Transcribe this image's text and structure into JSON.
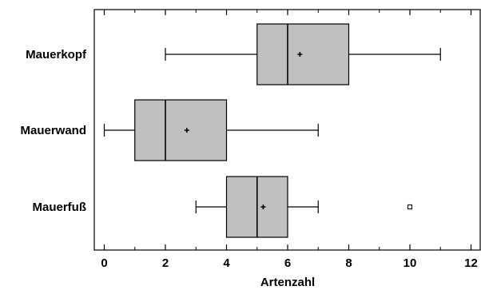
{
  "chart_data": {
    "type": "box",
    "xlabel": "Artenzahl",
    "xlim": [
      -0.3,
      12.3
    ],
    "x_ticks": [
      0,
      2,
      4,
      6,
      8,
      10,
      12
    ],
    "x_tick_labels": [
      "0",
      "2",
      "4",
      "6",
      "8",
      "10",
      "12"
    ],
    "categories": [
      "Mauerkopf",
      "Mauerwand",
      "Mauerfuß"
    ],
    "boxes": [
      {
        "category": "Mauerkopf",
        "whisker_low": 2,
        "q1": 5,
        "median": 6,
        "mean": 6.4,
        "q3": 8,
        "whisker_high": 11,
        "outliers": []
      },
      {
        "category": "Mauerwand",
        "whisker_low": 0,
        "q1": 1,
        "median": 2,
        "mean": 2.7,
        "q3": 4,
        "whisker_high": 7,
        "outliers": []
      },
      {
        "category": "Mauerfuß",
        "whisker_low": 3,
        "q1": 4,
        "median": 5,
        "mean": 5.2,
        "q3": 6,
        "whisker_high": 7,
        "outliers": [
          10
        ]
      }
    ],
    "box_fill": "#c0c0c0",
    "line_color": "#000000",
    "grid": false,
    "legend": "none"
  }
}
